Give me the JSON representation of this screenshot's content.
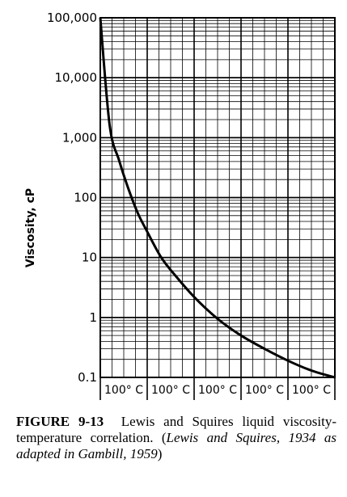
{
  "chart_data": {
    "type": "line",
    "ylabel": "Viscosity, cP",
    "y_scale": "log",
    "ylim": [
      0.1,
      100000
    ],
    "y_tick_labels": [
      "100,000",
      "10,000",
      "1,000",
      "100",
      "10",
      "1",
      "0.1"
    ],
    "y_tick_values": [
      100000,
      10000,
      1000,
      100,
      10,
      1,
      0.1
    ],
    "x_segment_labels": [
      "100° C",
      "100° C",
      "100° C",
      "100° C",
      "100° C"
    ],
    "xlim": [
      0,
      500
    ],
    "grid": true,
    "series": [
      {
        "x": [
          0,
          20,
          40,
          60,
          80,
          100,
          130,
          160,
          200,
          250,
          300,
          350,
          400,
          450,
          500
        ],
        "y": [
          100000,
          1600,
          420,
          140,
          55,
          27,
          10,
          5,
          2.2,
          0.95,
          0.5,
          0.3,
          0.19,
          0.13,
          0.1
        ]
      }
    ]
  },
  "caption": {
    "figure_number": "FIGURE 9-13",
    "text": "Lewis and Squires liquid viscosity-temperature correlation. (",
    "source": "Lewis and Squires, 1934 as adapted in Gambill, 1959",
    "close": ")"
  }
}
